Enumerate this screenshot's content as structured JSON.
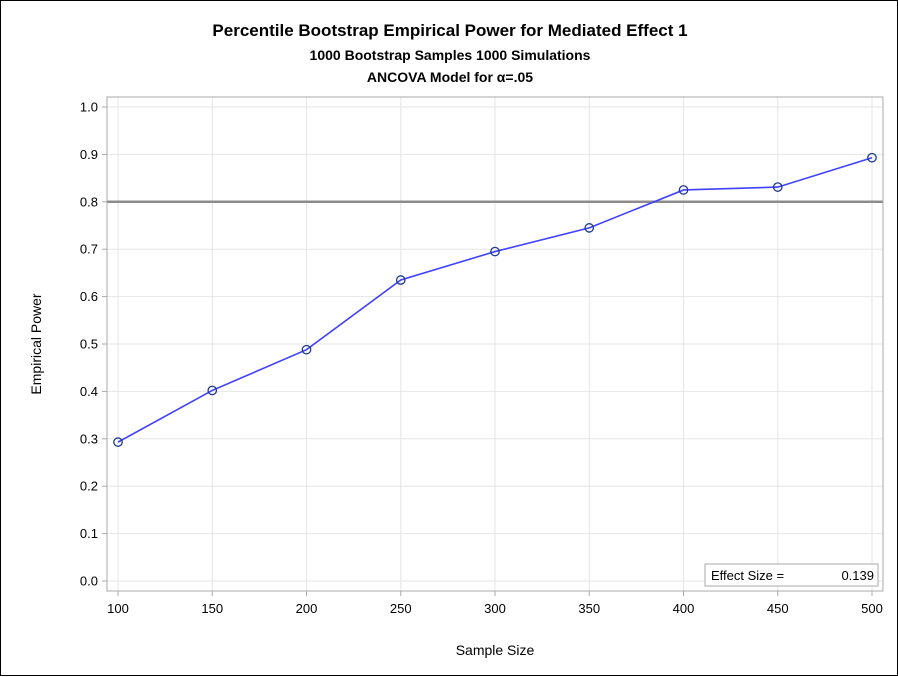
{
  "titles": {
    "line1": "Percentile Bootstrap Empirical Power for Mediated Effect 1",
    "line2": "1000 Bootstrap Samples 1000 Simulations",
    "line3": "ANCOVA Model for α=.05"
  },
  "chart_data": {
    "type": "line",
    "xlabel": "Sample Size",
    "ylabel": "Empirical Power",
    "x": [
      100,
      150,
      200,
      250,
      300,
      350,
      400,
      450,
      500
    ],
    "series": [
      {
        "values": [
          0.293,
          0.402,
          0.488,
          0.635,
          0.695,
          0.745,
          0.825,
          0.831,
          0.893
        ]
      }
    ],
    "xlim": [
      100,
      500
    ],
    "ylim": [
      0.0,
      1.0
    ],
    "xticks": [
      "100",
      "150",
      "200",
      "250",
      "300",
      "350",
      "400",
      "450",
      "500"
    ],
    "yticks": [
      "0.0",
      "0.1",
      "0.2",
      "0.3",
      "0.4",
      "0.5",
      "0.6",
      "0.7",
      "0.8",
      "0.9",
      "1.0"
    ],
    "reference_line": 0.8,
    "grid": true,
    "inset": {
      "label": "Effect Size =",
      "value": "0.139",
      "placement": "bottom-right"
    },
    "colors": {
      "line": "#4040ff",
      "marker": "#1f3a8a",
      "reference": "#8c8c8c",
      "grid": "#e6e6e6",
      "axis": "#a8a8a8"
    }
  }
}
